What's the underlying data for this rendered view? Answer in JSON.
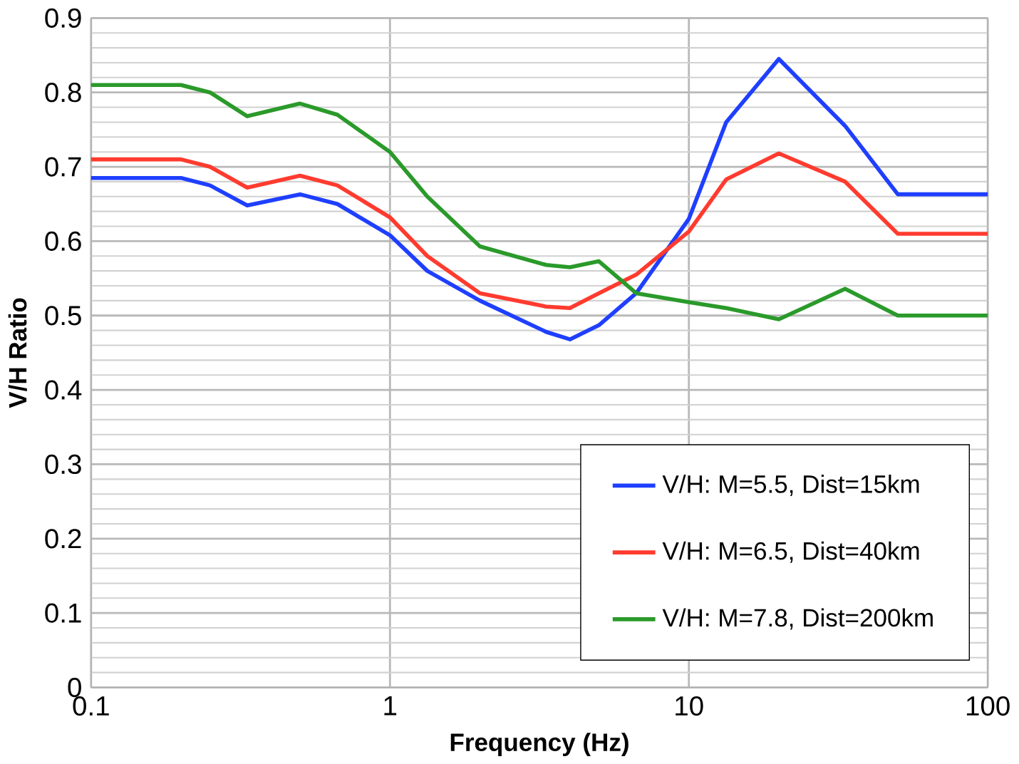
{
  "chart_data": {
    "type": "line",
    "xlabel": "Frequency (Hz)",
    "ylabel": "V/H Ratio",
    "log": "x",
    "x": [
      0.1,
      0.2,
      0.25,
      0.333,
      0.5,
      0.667,
      1,
      1.333,
      2,
      3.333,
      4,
      5,
      6.667,
      10,
      13.33,
      20,
      33.33,
      50,
      100
    ],
    "series": [
      {
        "name": "V/H: M=5.5, Dist=15km",
        "color": "#1f3fff",
        "values": [
          0.685,
          0.685,
          0.675,
          0.648,
          0.663,
          0.65,
          0.608,
          0.56,
          0.52,
          0.478,
          0.468,
          0.487,
          0.53,
          0.63,
          0.76,
          0.845,
          0.755,
          0.663,
          0.663
        ]
      },
      {
        "name": "V/H: M=6.5, Dist=40km",
        "color": "#ff3b2f",
        "values": [
          0.71,
          0.71,
          0.7,
          0.672,
          0.688,
          0.675,
          0.632,
          0.58,
          0.53,
          0.512,
          0.51,
          0.53,
          0.555,
          0.613,
          0.683,
          0.718,
          0.68,
          0.61,
          0.61
        ]
      },
      {
        "name": "V/H: M=7.8, Dist=200km",
        "color": "#2a9a2a",
        "values": [
          0.81,
          0.81,
          0.8,
          0.768,
          0.785,
          0.77,
          0.72,
          0.66,
          0.593,
          0.568,
          0.565,
          0.573,
          0.53,
          0.518,
          0.51,
          0.495,
          0.536,
          0.5,
          0.5
        ]
      }
    ],
    "xlim": [
      0.1,
      100
    ],
    "ylim": [
      0,
      0.9
    ],
    "xticks": [
      0.1,
      1,
      10,
      100
    ],
    "yticks": [
      0,
      0.1,
      0.2,
      0.3,
      0.4,
      0.5,
      0.6,
      0.7,
      0.8,
      0.9
    ],
    "grid": true,
    "legend": "bottom right",
    "marker": "none",
    "line_style": "solid"
  }
}
